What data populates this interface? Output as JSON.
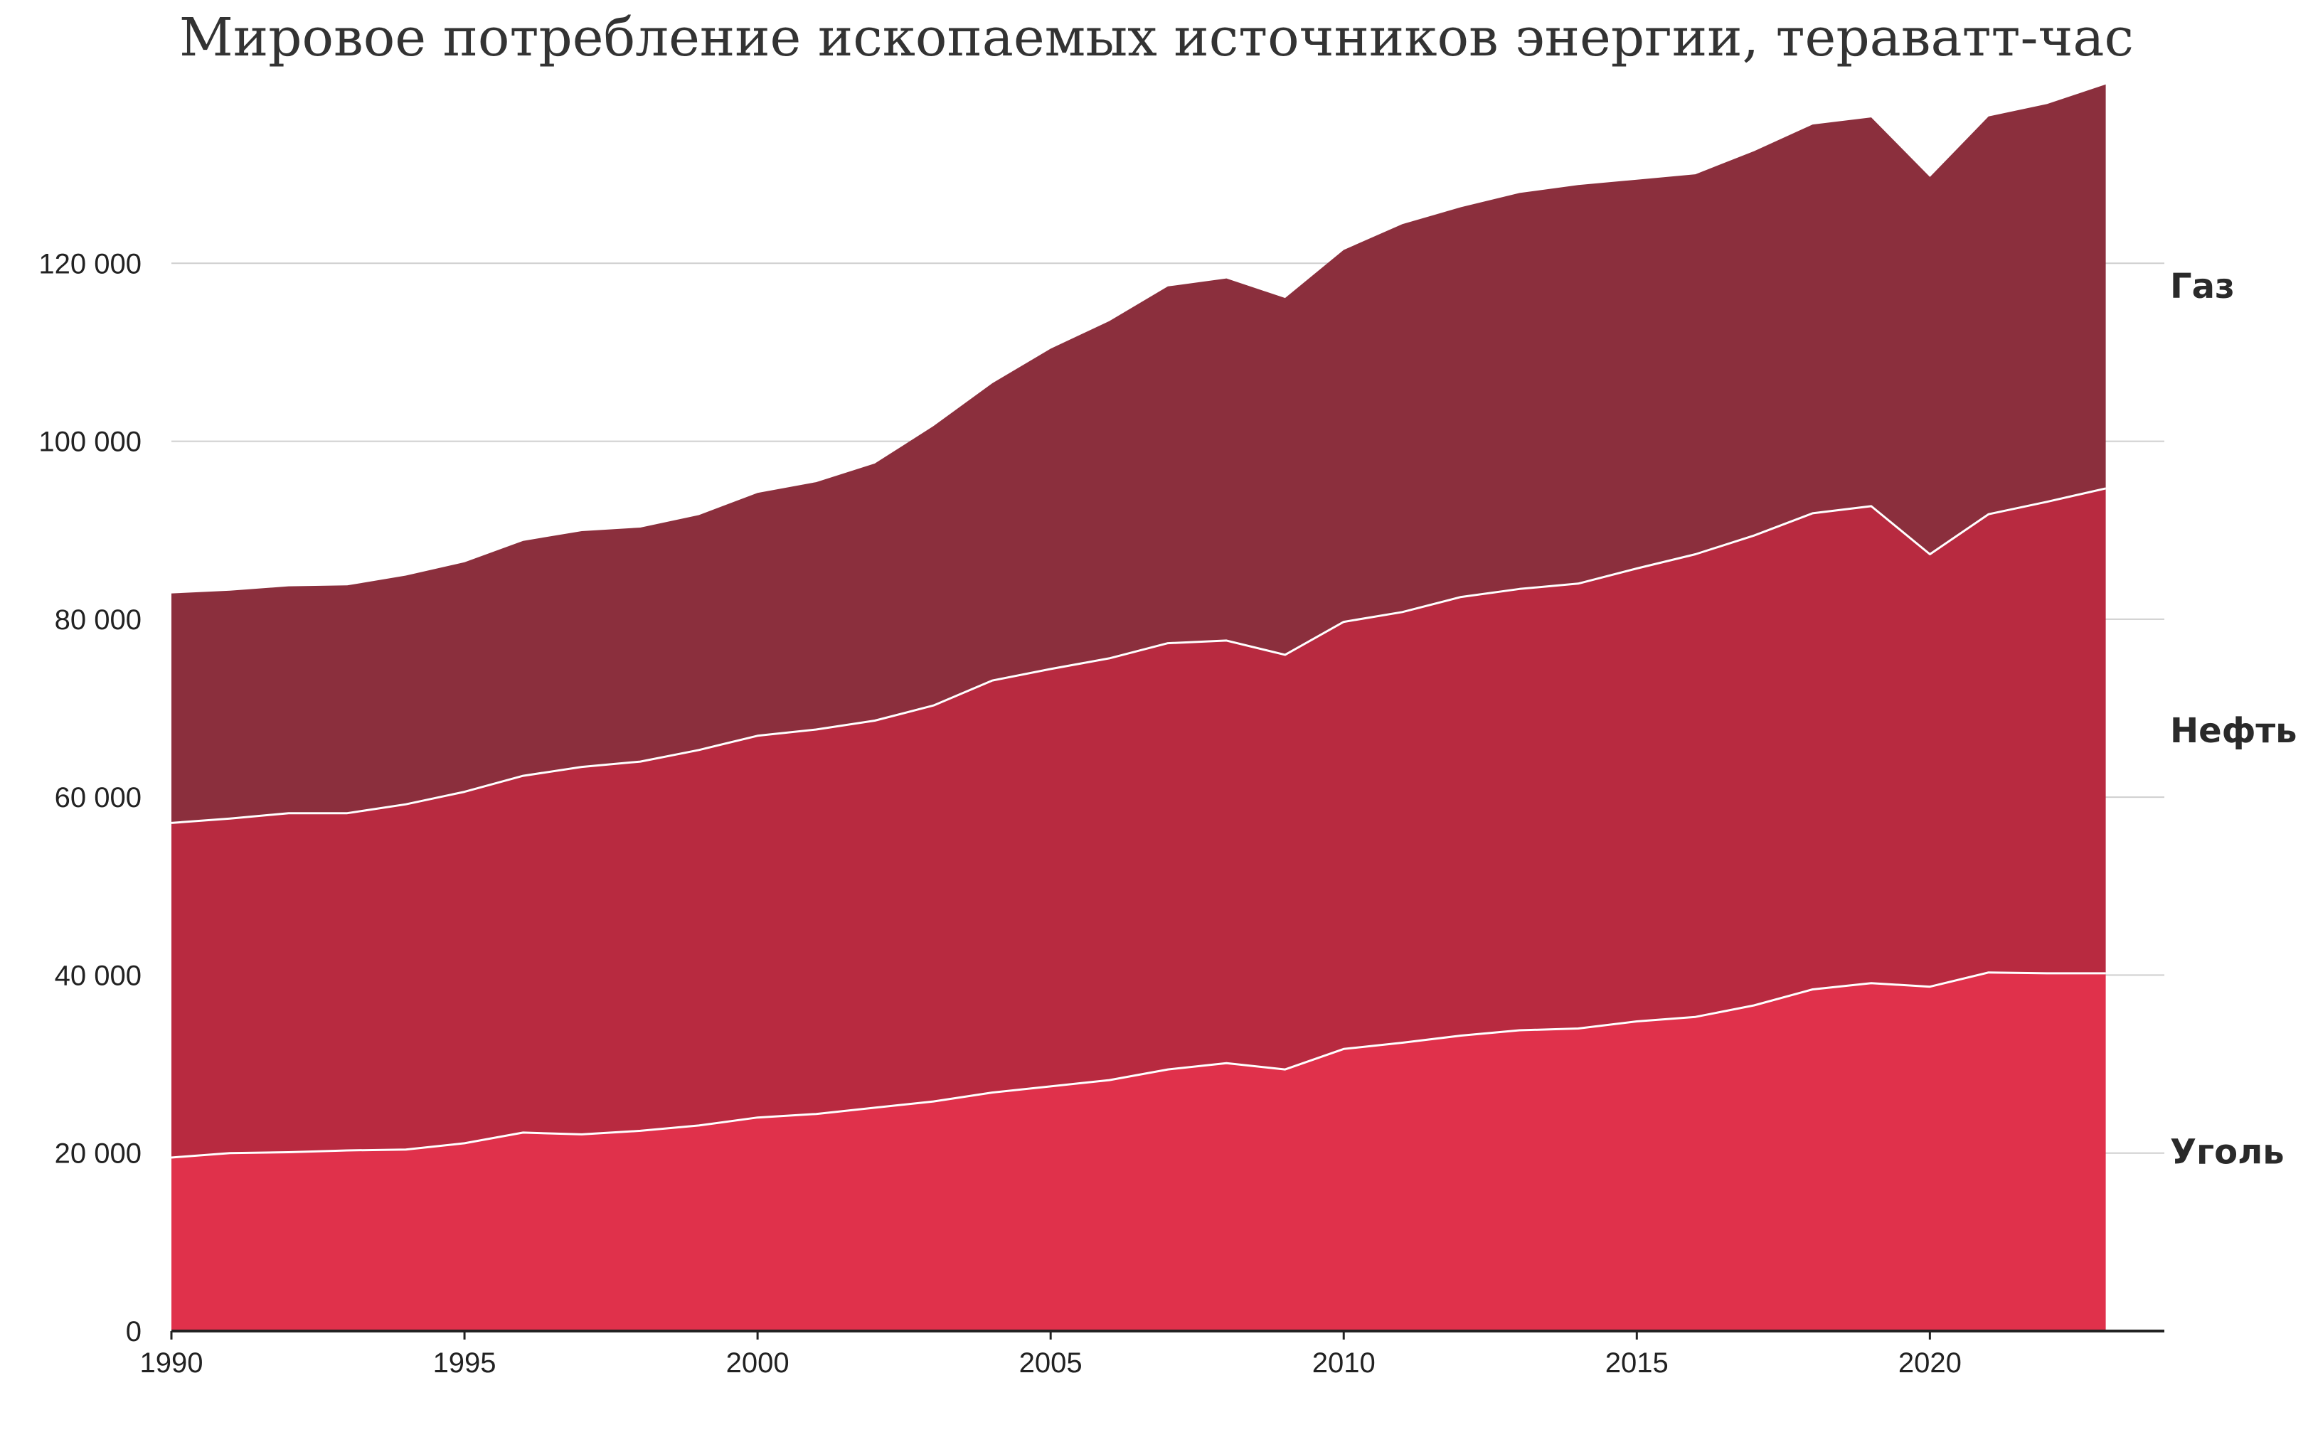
{
  "chart_data": {
    "type": "area",
    "stacked": true,
    "title": "Мировое потребление ископаемых источников энергии, тераватт-час",
    "xlabel": "",
    "ylabel": "",
    "xlim": [
      1990,
      2024
    ],
    "ylim": [
      0,
      140000
    ],
    "grid": true,
    "legend": "right, inline labels",
    "x_ticks": [
      1990,
      1995,
      2000,
      2005,
      2010,
      2015,
      2020
    ],
    "x_tick_labels": [
      "1990",
      "1995",
      "2000",
      "2005",
      "2010",
      "2015",
      "2020"
    ],
    "y_ticks": [
      0,
      20000,
      40000,
      60000,
      80000,
      100000,
      120000
    ],
    "y_tick_labels": [
      "0",
      "20 000",
      "40 000",
      "60 000",
      "80 000",
      "100 000",
      "120 000"
    ],
    "x": [
      1990,
      1991,
      1992,
      1993,
      1994,
      1995,
      1996,
      1997,
      1998,
      1999,
      2000,
      2001,
      2002,
      2003,
      2004,
      2005,
      2006,
      2007,
      2008,
      2009,
      2010,
      2011,
      2012,
      2013,
      2014,
      2015,
      2016,
      2017,
      2018,
      2019,
      2020,
      2021,
      2022,
      2023
    ],
    "series": [
      {
        "name": "Уголь",
        "color": "#e0314b",
        "values": [
          19500,
          20000,
          20100,
          20300,
          20400,
          21100,
          22300,
          22100,
          22500,
          23100,
          24000,
          24400,
          25100,
          25800,
          26800,
          27500,
          28200,
          29400,
          30100,
          29400,
          31700,
          32400,
          33200,
          33800,
          34000,
          34800,
          35300,
          36600,
          38400,
          39100,
          38700,
          40300,
          40200,
          40200
        ]
      },
      {
        "name": "Нефть",
        "color": "#b82a40",
        "values": [
          37600,
          37600,
          38100,
          37900,
          38800,
          39500,
          40100,
          41300,
          41500,
          42200,
          42900,
          43200,
          43500,
          44500,
          46300,
          46900,
          47400,
          47900,
          47500,
          46600,
          48000,
          48400,
          49300,
          49600,
          50000,
          50900,
          52000,
          52800,
          53500,
          53600,
          48600,
          51500,
          53000,
          54500
        ]
      },
      {
        "name": "Газ",
        "color": "#8b2f3d",
        "values": [
          25800,
          25600,
          25500,
          25600,
          25700,
          25800,
          26400,
          26500,
          26300,
          26400,
          27300,
          27800,
          28900,
          31400,
          33400,
          36000,
          37900,
          40100,
          40700,
          40100,
          41800,
          43600,
          43800,
          44500,
          44800,
          43700,
          42700,
          43200,
          43700,
          43700,
          42400,
          44700,
          44700,
          45400
        ]
      }
    ]
  }
}
